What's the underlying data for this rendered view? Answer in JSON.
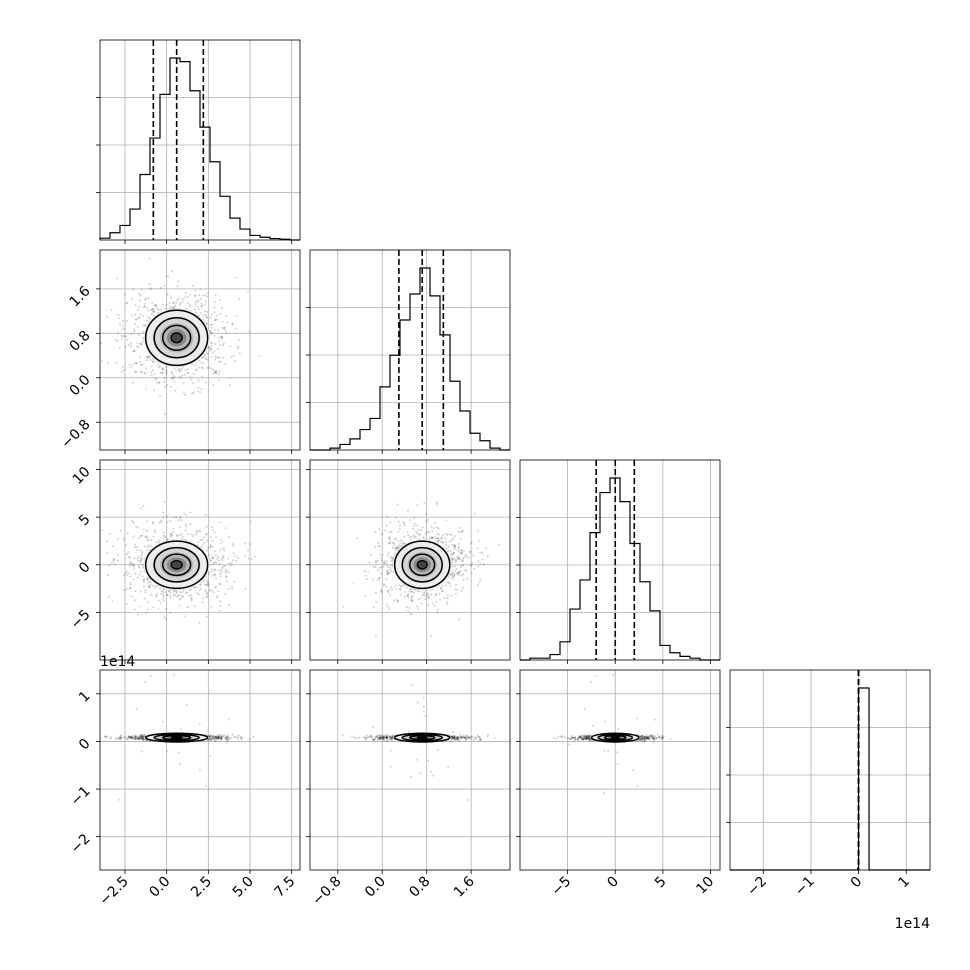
{
  "chart_data": {
    "type": "corner",
    "description_free": true,
    "parameters": [
      {
        "range": [
          -4.0,
          8.0
        ],
        "ticks": [
          -2.5,
          0.0,
          2.5,
          5.0,
          7.5
        ],
        "tick_labels": [
          "−2.5",
          "0.0",
          "2.5",
          "5.0",
          "7.5"
        ],
        "quantiles": [
          -0.8,
          0.6,
          2.2
        ]
      },
      {
        "range": [
          -1.3,
          2.3
        ],
        "ticks": [
          -0.8,
          0.0,
          0.8,
          1.6
        ],
        "tick_labels": [
          "−0.8",
          "0.0",
          "0.8",
          "1.6"
        ],
        "quantiles": [
          0.3,
          0.72,
          1.1
        ]
      },
      {
        "range": [
          -10.0,
          11.0
        ],
        "ticks": [
          -5,
          0,
          5,
          10
        ],
        "tick_labels": [
          "−5",
          "0",
          "5",
          "10"
        ],
        "quantiles": [
          -2.0,
          0.0,
          2.0
        ]
      },
      {
        "range": [
          -270000000000000.0,
          150000000000000.0
        ],
        "ticks": [
          -200000000000000.0,
          -100000000000000.0,
          0,
          100000000000000.0
        ],
        "tick_labels": [
          "−2",
          "−1",
          "0",
          "1"
        ],
        "offset_text": "1e14",
        "quantiles": [
          0,
          0,
          0
        ]
      }
    ],
    "histograms": [
      {
        "bin_edges": [
          -4.0,
          -3.4,
          -2.8,
          -2.2,
          -1.6,
          -1.0,
          -0.4,
          0.2,
          0.8,
          1.4,
          2.0,
          2.6,
          3.2,
          3.8,
          4.4,
          5.0,
          5.6,
          6.2,
          6.8,
          7.4,
          8.0
        ],
        "counts": [
          0.01,
          0.04,
          0.08,
          0.17,
          0.36,
          0.56,
          0.8,
          1.0,
          0.98,
          0.82,
          0.62,
          0.43,
          0.24,
          0.12,
          0.06,
          0.025,
          0.015,
          0.008,
          0.004,
          0.0
        ]
      },
      {
        "bin_edges": [
          -1.3,
          -1.12,
          -0.94,
          -0.76,
          -0.58,
          -0.4,
          -0.22,
          -0.04,
          0.14,
          0.32,
          0.5,
          0.68,
          0.86,
          1.04,
          1.22,
          1.4,
          1.58,
          1.76,
          1.94,
          2.12,
          2.3
        ],
        "counts": [
          0.0,
          0.0,
          0.01,
          0.03,
          0.06,
          0.11,
          0.17,
          0.34,
          0.51,
          0.7,
          0.84,
          0.98,
          0.83,
          0.62,
          0.37,
          0.21,
          0.09,
          0.05,
          0.01,
          0.0
        ]
      },
      {
        "bin_edges": [
          -10.0,
          -8.95,
          -7.9,
          -6.85,
          -5.8,
          -4.75,
          -3.7,
          -2.65,
          -1.6,
          -0.55,
          0.5,
          1.55,
          2.6,
          3.65,
          4.7,
          5.75,
          6.8,
          7.85,
          8.9,
          9.95,
          11.0
        ],
        "counts": [
          0.0,
          0.01,
          0.01,
          0.03,
          0.1,
          0.28,
          0.44,
          0.7,
          0.92,
          1.0,
          0.87,
          0.64,
          0.43,
          0.27,
          0.08,
          0.04,
          0.02,
          0.01,
          0.0,
          0.0
        ]
      },
      {
        "bin_edges": [
          -270000000000000.0,
          -2000000000000.0,
          0.0,
          22000000000000.0,
          150000000000000.0
        ],
        "counts": [
          0.0,
          0.01,
          1.0,
          0.0
        ]
      }
    ]
  }
}
